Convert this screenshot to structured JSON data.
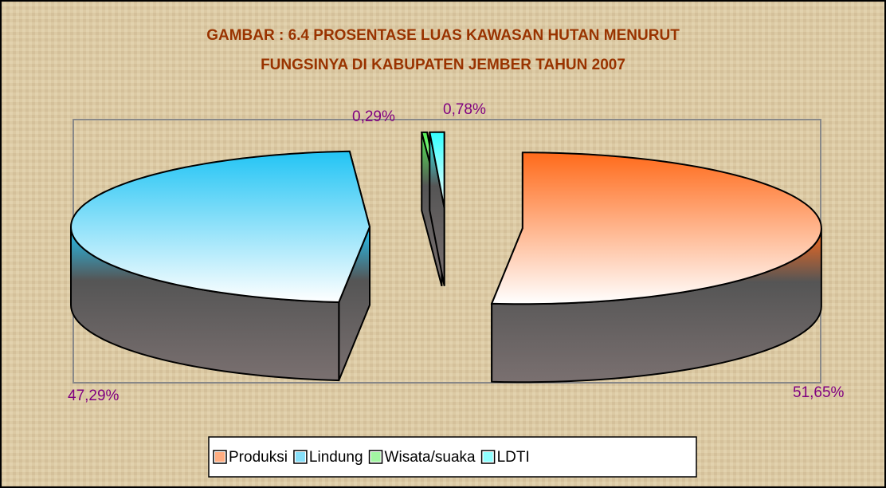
{
  "chart_data": {
    "type": "pie",
    "title": [
      "GAMBAR : 6.4 PROSENTASE LUAS KAWASAN HUTAN MENURUT",
      "FUNGSINYA DI KABUPATEN JEMBER TAHUN 2007"
    ],
    "categories": [
      "Produksi",
      "Lindung",
      "Wisata/suaka",
      "LDTI"
    ],
    "values": [
      51.65,
      47.29,
      0.29,
      0.78
    ],
    "value_labels": [
      "51,65%",
      "47,29%",
      "0,29%",
      "0,78%"
    ],
    "colors": [
      "#ff6a1a",
      "#22c4f4",
      "#55ee55",
      "#33ffff"
    ],
    "legend": "bottom"
  }
}
